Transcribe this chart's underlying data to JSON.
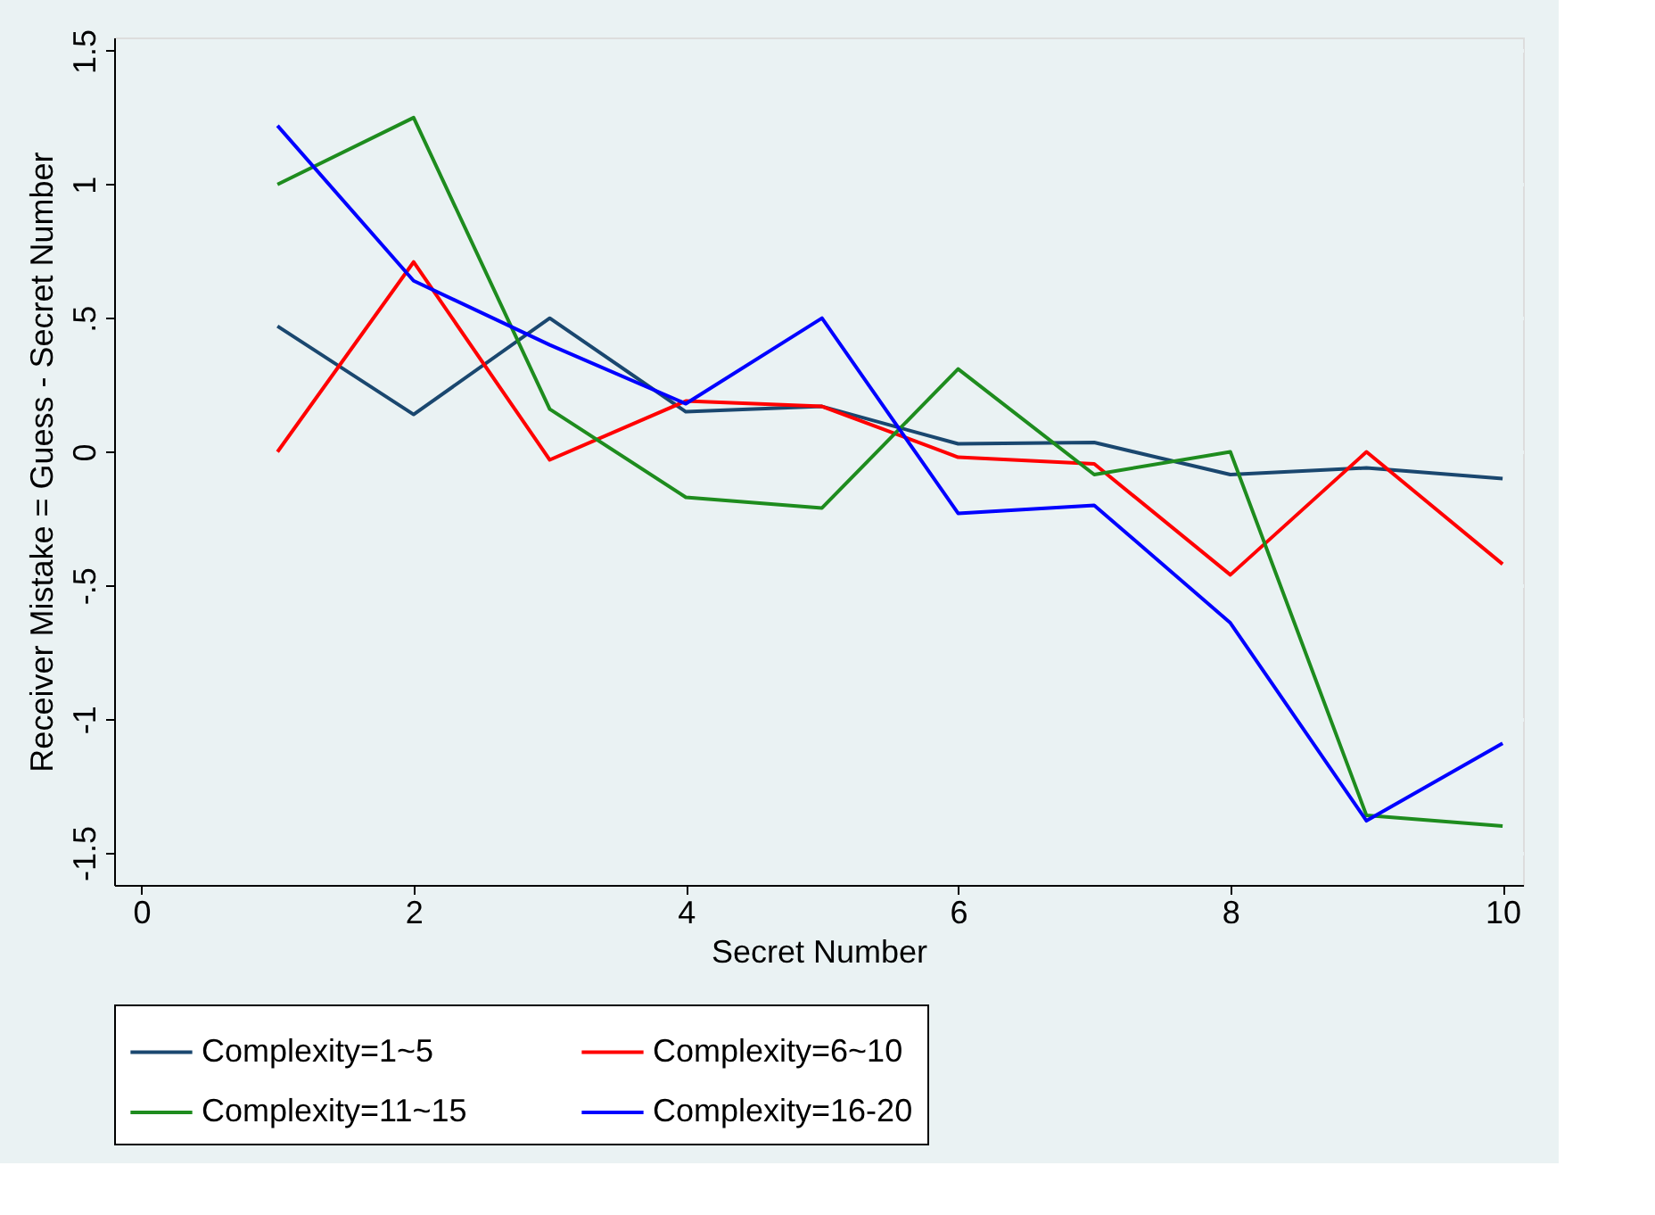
{
  "chart_data": {
    "type": "line",
    "xlabel": "Secret Number",
    "ylabel": "Receiver Mistake = Guess - Secret Number",
    "x": [
      1,
      2,
      3,
      4,
      5,
      6,
      7,
      8,
      9,
      10
    ],
    "series": [
      {
        "name": "Complexity=1~5",
        "color": "#1a476f",
        "values": [
          0.47,
          0.14,
          0.5,
          0.15,
          0.17,
          0.03,
          0.035,
          -0.085,
          -0.06,
          -0.1
        ]
      },
      {
        "name": "Complexity=6~10",
        "color": "#ff0000",
        "values": [
          0,
          0.71,
          -0.03,
          0.19,
          0.17,
          -0.02,
          -0.045,
          -0.46,
          0,
          -0.42
        ]
      },
      {
        "name": "Complexity=11~15",
        "color": "#1e8c1e",
        "values": [
          1.0,
          1.25,
          0.16,
          -0.17,
          -0.21,
          0.31,
          -0.085,
          0,
          -1.36,
          -1.4
        ]
      },
      {
        "name": "Complexity=16-20",
        "color": "#0000ff",
        "values": [
          1.22,
          0.64,
          0.4,
          0.18,
          0.5,
          -0.23,
          -0.2,
          -0.64,
          -1.38,
          -1.09
        ]
      }
    ],
    "xlim": [
      -0.2,
      10.15
    ],
    "xticks": [
      0,
      2,
      4,
      6,
      8,
      10
    ],
    "ylim": [
      -1.62,
      1.55
    ],
    "yticks": [
      {
        "value": -1.5,
        "label": "-1.5"
      },
      {
        "value": -1,
        "label": "-1"
      },
      {
        "value": -0.5,
        "label": "-.5"
      },
      0,
      {
        "value": 0.5,
        "label": ".5"
      },
      1,
      {
        "value": 1.5,
        "label": "1.5"
      }
    ],
    "grid": "y",
    "legend": "bottom",
    "line_style": "solid",
    "marker": "none"
  }
}
